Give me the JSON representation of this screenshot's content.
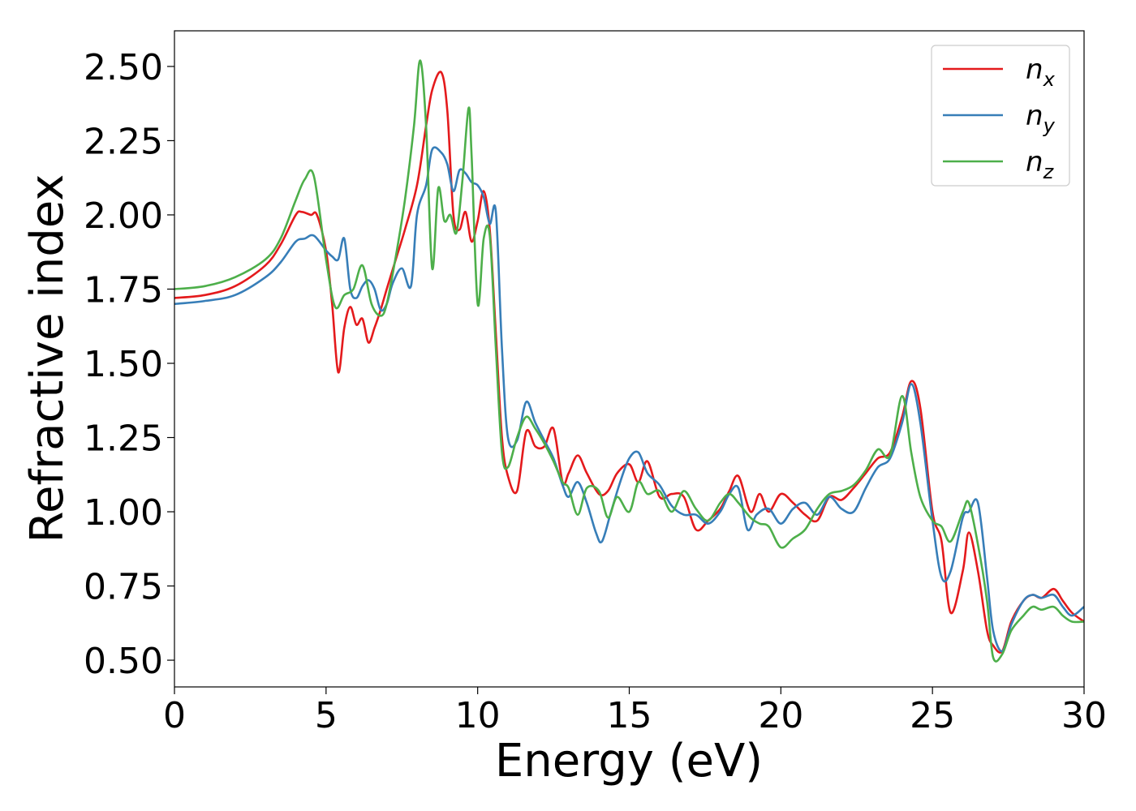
{
  "chart_data": {
    "type": "line",
    "xlabel": "Energy (eV)",
    "ylabel": "Refractive index",
    "xlim": [
      0,
      30
    ],
    "ylim": [
      0.41,
      2.62
    ],
    "xticks": [
      "0",
      "5",
      "10",
      "15",
      "20",
      "25",
      "30"
    ],
    "yticks": [
      "0.50",
      "0.75",
      "1.00",
      "1.25",
      "1.50",
      "1.75",
      "2.00",
      "2.25",
      "2.50"
    ],
    "grid": false,
    "legend_position": "top-right",
    "series": [
      {
        "name": "n",
        "sub": "x",
        "color": "#e41a1c",
        "x": [
          0,
          1,
          2,
          3,
          3.5,
          4,
          4.2,
          4.5,
          4.7,
          5.0,
          5.2,
          5.4,
          5.6,
          5.8,
          6.0,
          6.2,
          6.4,
          6.6,
          6.8,
          7.0,
          7.3,
          7.6,
          8.0,
          8.3,
          8.5,
          8.8,
          9.0,
          9.2,
          9.4,
          9.6,
          9.8,
          10.0,
          10.2,
          10.4,
          10.6,
          10.8,
          11.0,
          11.3,
          11.6,
          11.9,
          12.2,
          12.5,
          12.8,
          13.0,
          13.3,
          13.6,
          14.0,
          14.3,
          14.6,
          15.0,
          15.3,
          15.6,
          16.0,
          16.4,
          16.8,
          17.2,
          17.6,
          18.0,
          18.3,
          18.6,
          19.0,
          19.3,
          19.6,
          20.0,
          20.4,
          20.8,
          21.2,
          21.6,
          22.0,
          22.4,
          22.8,
          23.2,
          23.6,
          24.0,
          24.3,
          24.6,
          25.0,
          25.3,
          25.6,
          26.0,
          26.2,
          26.5,
          26.8,
          27.0,
          27.3,
          27.6,
          28.0,
          28.3,
          28.6,
          29.0,
          29.3,
          29.6,
          30.0
        ],
        "y": [
          1.72,
          1.73,
          1.76,
          1.83,
          1.9,
          2.0,
          2.01,
          2.0,
          2.0,
          1.88,
          1.7,
          1.47,
          1.62,
          1.69,
          1.63,
          1.65,
          1.57,
          1.62,
          1.68,
          1.75,
          1.85,
          1.95,
          2.1,
          2.3,
          2.42,
          2.48,
          2.35,
          2.0,
          1.95,
          2.01,
          1.91,
          1.98,
          2.08,
          1.95,
          1.6,
          1.25,
          1.12,
          1.07,
          1.27,
          1.22,
          1.22,
          1.28,
          1.1,
          1.13,
          1.19,
          1.13,
          1.06,
          1.07,
          1.13,
          1.16,
          1.1,
          1.17,
          1.05,
          1.06,
          1.05,
          0.94,
          0.97,
          1.01,
          1.07,
          1.12,
          1.0,
          1.06,
          1.0,
          1.06,
          1.03,
          0.99,
          0.97,
          1.05,
          1.04,
          1.08,
          1.13,
          1.18,
          1.2,
          1.32,
          1.44,
          1.35,
          1.0,
          0.9,
          0.66,
          0.8,
          0.93,
          0.8,
          0.6,
          0.55,
          0.53,
          0.63,
          0.7,
          0.72,
          0.71,
          0.74,
          0.7,
          0.66,
          0.63
        ]
      },
      {
        "name": "n",
        "sub": "y",
        "color": "#377eb8",
        "x": [
          0,
          1,
          2,
          3,
          3.5,
          4,
          4.3,
          4.6,
          5.0,
          5.2,
          5.4,
          5.6,
          5.8,
          6.0,
          6.2,
          6.4,
          6.6,
          6.8,
          7.0,
          7.2,
          7.5,
          7.8,
          8.0,
          8.3,
          8.5,
          8.8,
          9.0,
          9.2,
          9.4,
          9.6,
          9.8,
          10.0,
          10.2,
          10.4,
          10.6,
          10.8,
          11.0,
          11.3,
          11.6,
          11.9,
          12.2,
          12.5,
          12.8,
          13.0,
          13.3,
          13.6,
          13.9,
          14.1,
          14.4,
          14.7,
          15.0,
          15.3,
          15.6,
          16.0,
          16.4,
          16.8,
          17.2,
          17.6,
          18.0,
          18.3,
          18.6,
          18.9,
          19.2,
          19.6,
          20.0,
          20.4,
          20.8,
          21.2,
          21.6,
          22.0,
          22.4,
          22.8,
          23.2,
          23.6,
          24.0,
          24.3,
          24.6,
          25.0,
          25.3,
          25.6,
          26.0,
          26.2,
          26.5,
          26.8,
          27.0,
          27.3,
          27.6,
          28.0,
          28.3,
          28.6,
          29.0,
          29.3,
          29.6,
          30.0
        ],
        "y": [
          1.7,
          1.71,
          1.73,
          1.79,
          1.84,
          1.91,
          1.92,
          1.93,
          1.88,
          1.86,
          1.85,
          1.92,
          1.75,
          1.72,
          1.76,
          1.78,
          1.75,
          1.68,
          1.7,
          1.77,
          1.82,
          1.76,
          2.0,
          2.1,
          2.22,
          2.21,
          2.17,
          2.08,
          2.15,
          2.14,
          2.11,
          2.1,
          2.06,
          1.97,
          2.01,
          1.55,
          1.25,
          1.24,
          1.37,
          1.3,
          1.24,
          1.18,
          1.09,
          1.05,
          1.1,
          1.03,
          0.93,
          0.9,
          1.0,
          1.1,
          1.18,
          1.2,
          1.13,
          1.09,
          1.02,
          0.99,
          0.99,
          0.96,
          1.0,
          1.06,
          1.08,
          0.94,
          0.99,
          1.01,
          0.96,
          1.01,
          1.03,
          0.99,
          1.05,
          1.01,
          1.0,
          1.08,
          1.15,
          1.18,
          1.3,
          1.43,
          1.3,
          0.97,
          0.78,
          0.8,
          0.98,
          1.0,
          1.03,
          0.78,
          0.6,
          0.53,
          0.62,
          0.7,
          0.72,
          0.71,
          0.72,
          0.68,
          0.65,
          0.68
        ]
      },
      {
        "name": "n",
        "sub": "z",
        "color": "#4daf4a",
        "x": [
          0,
          1,
          2,
          3,
          3.5,
          4,
          4.3,
          4.6,
          5.0,
          5.3,
          5.6,
          5.9,
          6.2,
          6.5,
          6.8,
          7.0,
          7.3,
          7.6,
          7.9,
          8.1,
          8.3,
          8.5,
          8.7,
          8.9,
          9.1,
          9.3,
          9.5,
          9.7,
          9.8,
          10.0,
          10.2,
          10.4,
          10.6,
          10.8,
          11.0,
          11.3,
          11.6,
          11.9,
          12.2,
          12.5,
          12.8,
          13.0,
          13.3,
          13.6,
          14.0,
          14.3,
          14.6,
          15.0,
          15.3,
          15.6,
          16.0,
          16.4,
          16.8,
          17.2,
          17.6,
          18.0,
          18.3,
          18.6,
          19.0,
          19.3,
          19.6,
          20.0,
          20.4,
          20.8,
          21.2,
          21.6,
          22.0,
          22.4,
          22.8,
          23.2,
          23.6,
          24.0,
          24.3,
          24.6,
          25.0,
          25.3,
          25.6,
          26.0,
          26.2,
          26.5,
          26.8,
          27.0,
          27.3,
          27.6,
          28.0,
          28.3,
          28.6,
          29.0,
          29.3,
          29.6,
          30.0
        ],
        "y": [
          1.75,
          1.76,
          1.79,
          1.85,
          1.92,
          2.05,
          2.12,
          2.13,
          1.85,
          1.69,
          1.73,
          1.75,
          1.83,
          1.7,
          1.66,
          1.7,
          1.86,
          2.05,
          2.3,
          2.52,
          2.3,
          1.82,
          2.09,
          1.98,
          2.0,
          1.94,
          2.12,
          2.36,
          2.2,
          1.7,
          1.92,
          1.93,
          1.55,
          1.2,
          1.15,
          1.25,
          1.32,
          1.28,
          1.23,
          1.17,
          1.1,
          1.08,
          0.99,
          1.08,
          1.07,
          0.98,
          1.05,
          1.0,
          1.1,
          1.06,
          1.07,
          1.0,
          1.07,
          1.01,
          0.97,
          1.03,
          1.06,
          1.03,
          0.98,
          0.96,
          0.95,
          0.88,
          0.91,
          0.94,
          1.01,
          1.06,
          1.07,
          1.09,
          1.14,
          1.21,
          1.19,
          1.39,
          1.2,
          1.05,
          0.97,
          0.95,
          0.9,
          1.0,
          1.03,
          0.89,
          0.7,
          0.51,
          0.52,
          0.6,
          0.65,
          0.68,
          0.67,
          0.68,
          0.65,
          0.63,
          0.63
        ]
      }
    ]
  }
}
